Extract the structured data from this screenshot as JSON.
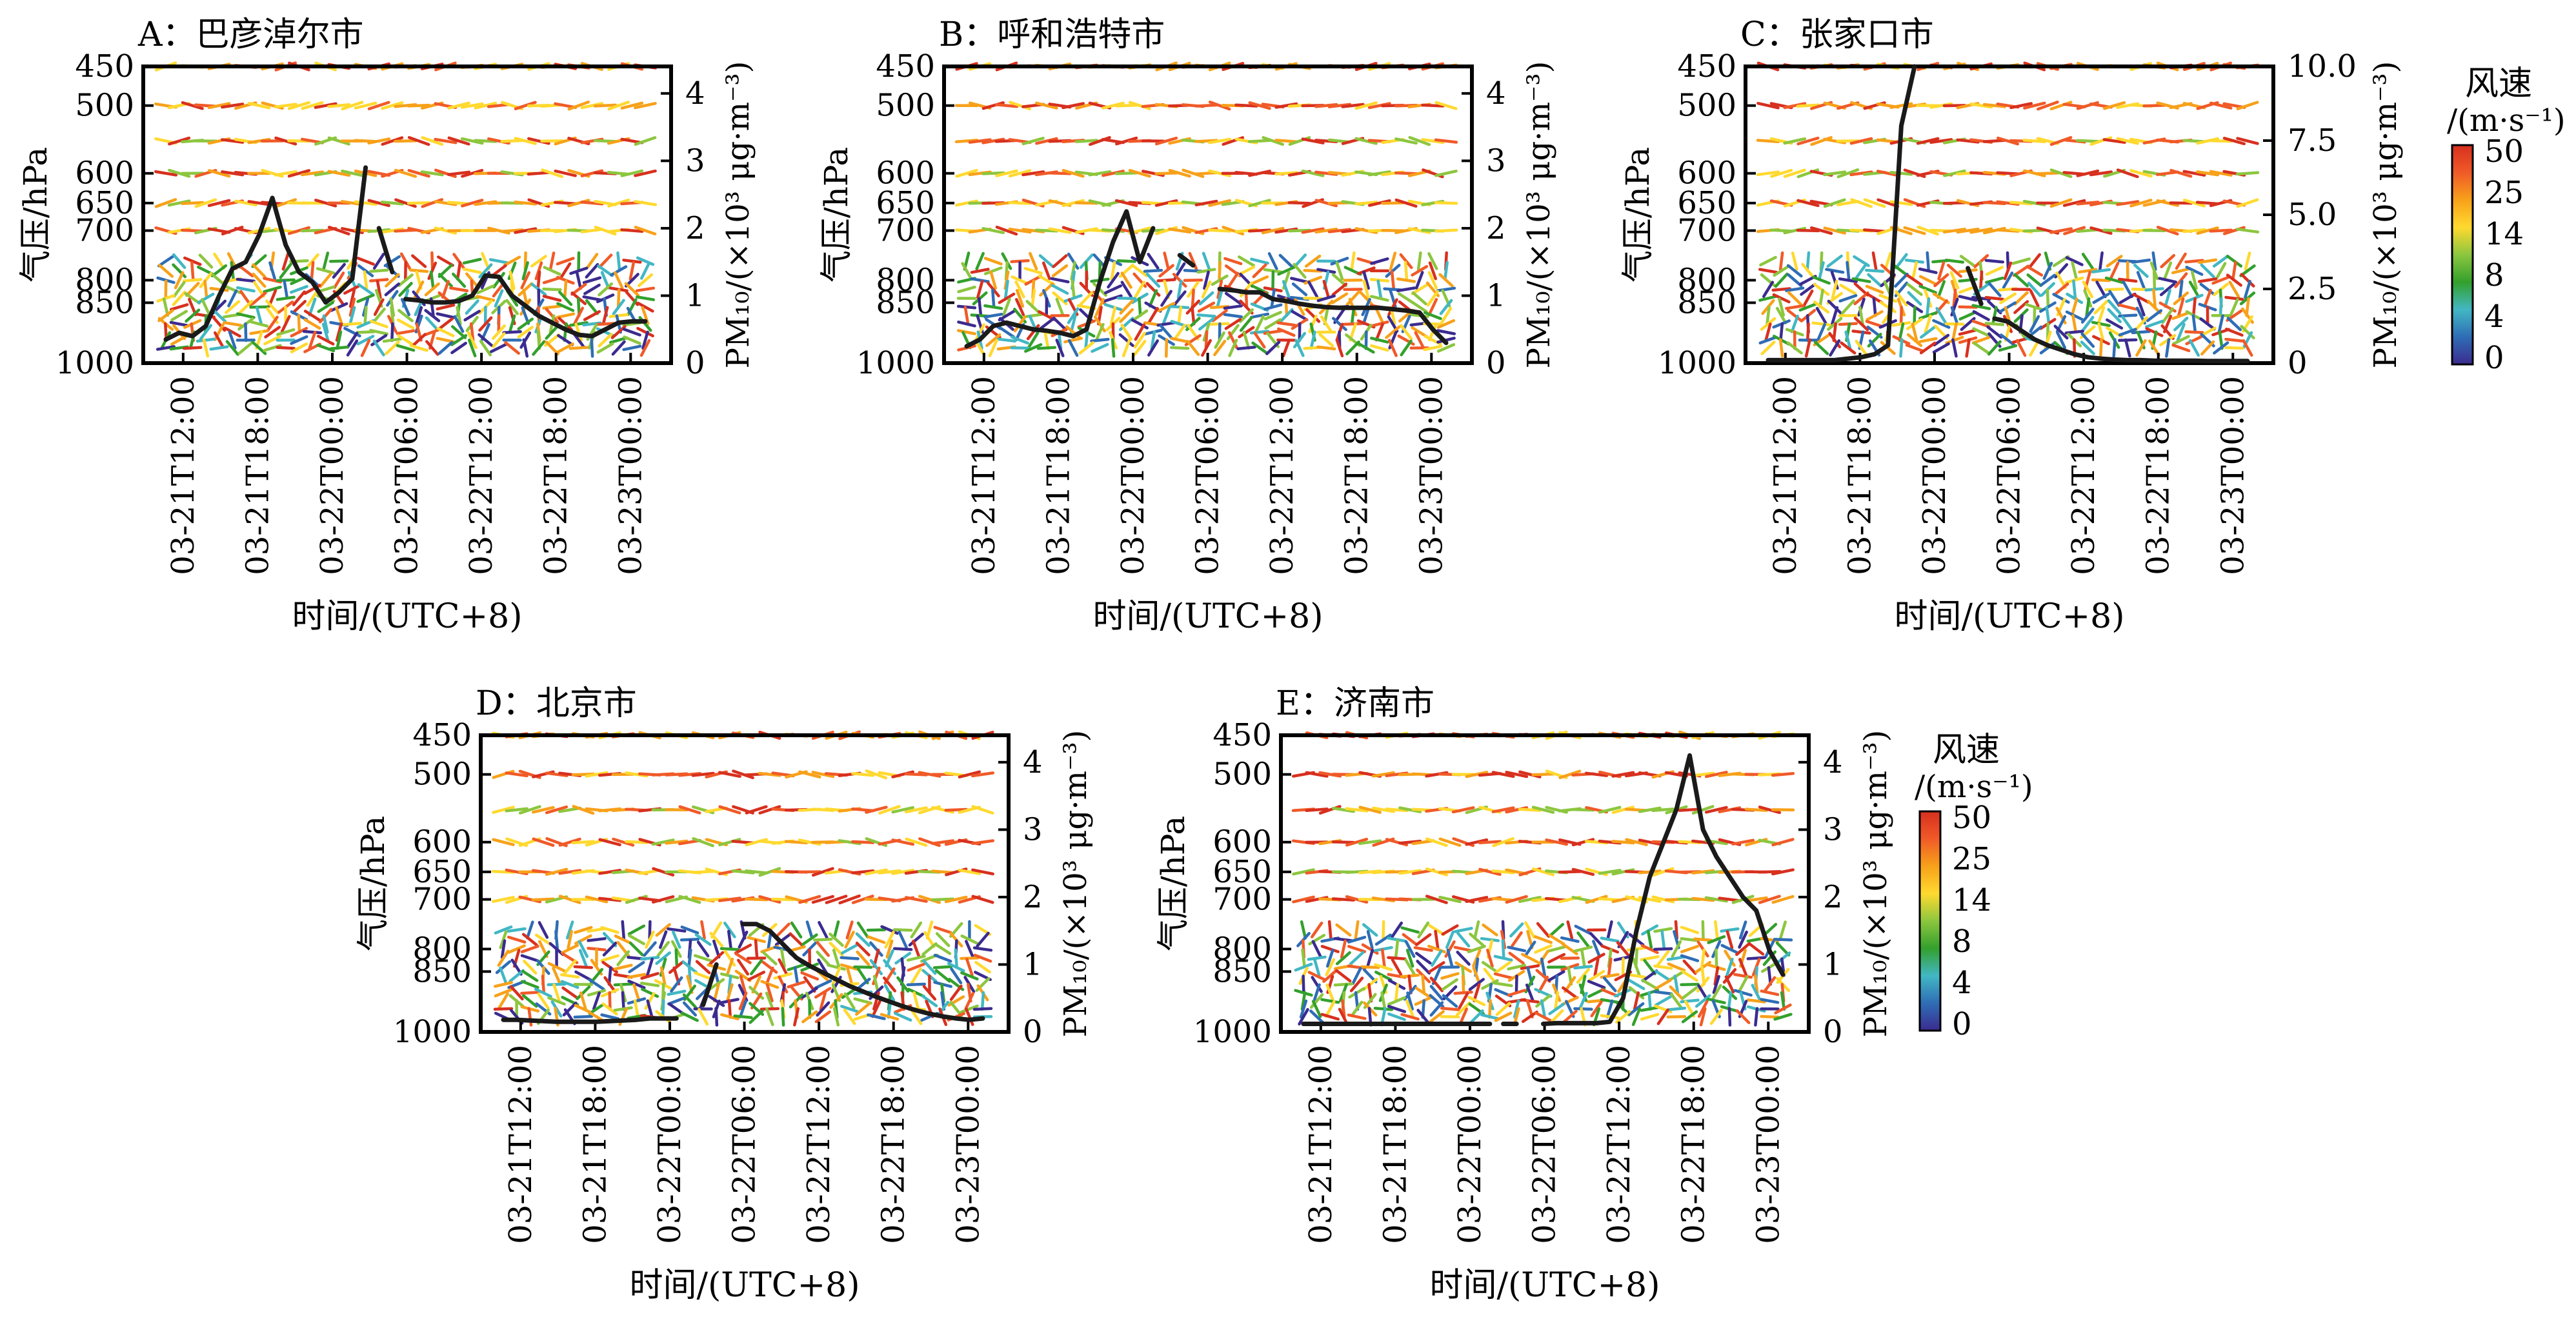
{
  "figure": {
    "common": {
      "ylabel_left": "气压/hPa",
      "ylabel_right": "PM₁₀/(×10³ μg·m⁻³)",
      "xlabel": "时间/(UTC+8)",
      "pressure_ticks": [
        450,
        500,
        600,
        650,
        700,
        800,
        850,
        1000
      ],
      "time_ticks": [
        "03-21T12:00",
        "03-21T18:00",
        "03-22T00:00",
        "03-22T06:00",
        "03-22T12:00",
        "03-22T18:00",
        "03-23T00:00"
      ]
    },
    "colorbar": {
      "title": "风速",
      "unit": "/(m·s⁻¹)",
      "ticks": [
        "50",
        "25",
        "14",
        "8",
        "4",
        "0"
      ],
      "colors": [
        "#d7301f",
        "#f05a28",
        "#f7a11a",
        "#ffd92f",
        "#8cc63f",
        "#33a02c",
        "#42b7c4",
        "#2f6db5",
        "#3b2b8f"
      ]
    }
  },
  "chart_data": [
    {
      "panel": "A",
      "title": "A：巴彦淖尔市",
      "type": "line",
      "x_range": [
        "03-21T10:00",
        "03-23T01:00"
      ],
      "ylim_right": [
        0,
        4.4
      ],
      "right_ticks": [
        0,
        1,
        2,
        3,
        4
      ],
      "wind_ylim_hpa": [
        450,
        1000
      ],
      "series": [
        {
          "segments": [
            [
              [
                0,
                0.35
              ],
              [
                1,
                0.45
              ],
              [
                2,
                0.4
              ],
              [
                3,
                0.55
              ],
              [
                4,
                1.0
              ],
              [
                5,
                1.4
              ],
              [
                6,
                1.5
              ],
              [
                7,
                1.9
              ],
              [
                8,
                2.45
              ],
              [
                9,
                1.75
              ],
              [
                10,
                1.35
              ],
              [
                11,
                1.2
              ],
              [
                12,
                0.9
              ],
              [
                13,
                1.05
              ],
              [
                14,
                1.25
              ],
              [
                15,
                2.9
              ]
            ],
            [
              [
                16,
                2.0
              ],
              [
                17,
                1.35
              ]
            ],
            [
              [
                18,
                0.95
              ],
              [
                19,
                0.93
              ],
              [
                20,
                0.9
              ],
              [
                21,
                0.9
              ],
              [
                22,
                0.92
              ],
              [
                23,
                1.0
              ],
              [
                24,
                1.3
              ],
              [
                25,
                1.28
              ],
              [
                26,
                1.0
              ],
              [
                27,
                0.85
              ],
              [
                28,
                0.7
              ],
              [
                29,
                0.6
              ],
              [
                30,
                0.5
              ],
              [
                31,
                0.42
              ],
              [
                32,
                0.4
              ],
              [
                33,
                0.5
              ],
              [
                34,
                0.6
              ],
              [
                35,
                0.62
              ],
              [
                36,
                0.62
              ]
            ]
          ]
        }
      ]
    },
    {
      "panel": "B",
      "title": "B：呼和浩特市",
      "type": "line",
      "x_range": [
        "03-21T10:00",
        "03-23T01:00"
      ],
      "ylim_right": [
        0,
        4.4
      ],
      "right_ticks": [
        0,
        1,
        2,
        3,
        4
      ],
      "wind_ylim_hpa": [
        450,
        1000
      ],
      "series": [
        {
          "segments": [
            [
              [
                0,
                0.25
              ],
              [
                1,
                0.35
              ],
              [
                2,
                0.55
              ],
              [
                3,
                0.6
              ],
              [
                4,
                0.55
              ],
              [
                5,
                0.5
              ],
              [
                6,
                0.48
              ],
              [
                7,
                0.45
              ],
              [
                8,
                0.4
              ],
              [
                9,
                0.5
              ],
              [
                10,
                1.2
              ],
              [
                11,
                1.8
              ],
              [
                12,
                2.25
              ],
              [
                13,
                1.5
              ],
              [
                14,
                2.0
              ]
            ],
            [
              [
                16,
                1.6
              ],
              [
                17,
                1.45
              ]
            ],
            [
              [
                19,
                1.1
              ],
              [
                20,
                1.08
              ],
              [
                21,
                1.05
              ],
              [
                22,
                1.05
              ],
              [
                23,
                0.95
              ],
              [
                24,
                0.92
              ],
              [
                25,
                0.88
              ],
              [
                26,
                0.85
              ],
              [
                27,
                0.83
              ],
              [
                28,
                0.82
              ],
              [
                29,
                0.82
              ],
              [
                30,
                0.82
              ],
              [
                31,
                0.82
              ],
              [
                32,
                0.8
              ],
              [
                33,
                0.78
              ],
              [
                34,
                0.75
              ],
              [
                35,
                0.5
              ],
              [
                36,
                0.3
              ]
            ]
          ]
        }
      ]
    },
    {
      "panel": "C",
      "title": "C：张家口市",
      "type": "line",
      "x_range": [
        "03-21T10:00",
        "03-23T01:00"
      ],
      "ylim_right": [
        0,
        10.0
      ],
      "right_ticks": [
        "0",
        "2.5",
        "5.0",
        "7.5",
        "10.0"
      ],
      "wind_ylim_hpa": [
        450,
        1000
      ],
      "series": [
        {
          "segments": [
            [
              [
                0,
                0.1
              ],
              [
                1,
                0.1
              ],
              [
                2,
                0.1
              ],
              [
                3,
                0.1
              ],
              [
                4,
                0.1
              ],
              [
                5,
                0.1
              ],
              [
                6,
                0.15
              ],
              [
                7,
                0.2
              ],
              [
                8,
                0.3
              ],
              [
                9,
                0.6
              ],
              [
                10,
                8.0
              ],
              [
                11,
                10.0
              ]
            ],
            [
              [
                15,
                3.2
              ],
              [
                16,
                2.0
              ]
            ],
            [
              [
                17,
                1.5
              ],
              [
                18,
                1.4
              ],
              [
                19,
                1.1
              ],
              [
                20,
                0.8
              ],
              [
                21,
                0.6
              ],
              [
                22,
                0.45
              ],
              [
                23,
                0.3
              ],
              [
                24,
                0.2
              ],
              [
                25,
                0.15
              ],
              [
                26,
                0.12
              ],
              [
                27,
                0.1
              ],
              [
                28,
                0.1
              ],
              [
                29,
                0.08
              ],
              [
                30,
                0.08
              ],
              [
                31,
                0.08
              ],
              [
                32,
                0.08
              ],
              [
                33,
                0.07
              ],
              [
                34,
                0.07
              ],
              [
                35,
                0.07
              ],
              [
                36,
                0.07
              ]
            ]
          ]
        }
      ]
    },
    {
      "panel": "D",
      "title": "D：北京市",
      "type": "line",
      "x_range": [
        "03-21T10:00",
        "03-23T01:00"
      ],
      "ylim_right": [
        0,
        4.4
      ],
      "right_ticks": [
        0,
        1,
        2,
        3,
        4
      ],
      "wind_ylim_hpa": [
        450,
        1000
      ],
      "series": [
        {
          "segments": [
            [
              [
                0,
                0.18
              ],
              [
                1,
                0.18
              ],
              [
                2,
                0.17
              ],
              [
                3,
                0.16
              ],
              [
                4,
                0.15
              ],
              [
                5,
                0.15
              ],
              [
                6,
                0.15
              ],
              [
                7,
                0.15
              ],
              [
                8,
                0.16
              ],
              [
                9,
                0.17
              ],
              [
                10,
                0.18
              ],
              [
                11,
                0.2
              ],
              [
                12,
                0.2
              ],
              [
                13,
                0.2
              ]
            ],
            [
              [
                15,
                0.4
              ],
              [
                16,
                1.0
              ]
            ],
            [
              [
                18,
                1.6
              ],
              [
                19,
                1.6
              ],
              [
                20,
                1.5
              ],
              [
                21,
                1.3
              ],
              [
                22,
                1.1
              ],
              [
                23,
                0.98
              ],
              [
                24,
                0.88
              ],
              [
                25,
                0.78
              ],
              [
                26,
                0.68
              ],
              [
                27,
                0.6
              ],
              [
                28,
                0.52
              ],
              [
                29,
                0.45
              ],
              [
                30,
                0.38
              ],
              [
                31,
                0.32
              ],
              [
                32,
                0.27
              ],
              [
                33,
                0.23
              ],
              [
                34,
                0.2
              ],
              [
                35,
                0.18
              ],
              [
                36,
                0.2
              ]
            ]
          ]
        }
      ]
    },
    {
      "panel": "E",
      "title": "E：济南市",
      "type": "line",
      "x_range": [
        "03-21T10:00",
        "03-23T01:00"
      ],
      "ylim_right": [
        0,
        4.4
      ],
      "right_ticks": [
        0,
        1,
        2,
        3,
        4
      ],
      "wind_ylim_hpa": [
        450,
        1000
      ],
      "series": [
        {
          "segments": [
            [
              [
                0,
                0.12
              ],
              [
                1,
                0.12
              ],
              [
                2,
                0.12
              ],
              [
                3,
                0.12
              ],
              [
                4,
                0.12
              ],
              [
                5,
                0.12
              ],
              [
                6,
                0.12
              ],
              [
                7,
                0.12
              ],
              [
                8,
                0.12
              ],
              [
                9,
                0.12
              ],
              [
                10,
                0.12
              ],
              [
                11,
                0.12
              ],
              [
                12,
                0.12
              ],
              [
                13,
                0.12
              ],
              [
                14,
                0.12
              ]
            ],
            [
              [
                15,
                0.12
              ],
              [
                16,
                0.12
              ]
            ],
            [
              [
                18,
                0.12
              ],
              [
                19,
                0.13
              ],
              [
                20,
                0.13
              ],
              [
                21,
                0.13
              ],
              [
                22,
                0.13
              ],
              [
                23,
                0.15
              ],
              [
                24,
                0.5
              ],
              [
                25,
                1.5
              ],
              [
                26,
                2.3
              ],
              [
                27,
                2.8
              ],
              [
                28,
                3.3
              ],
              [
                29,
                4.1
              ],
              [
                30,
                3.0
              ],
              [
                31,
                2.6
              ],
              [
                32,
                2.3
              ],
              [
                33,
                2.0
              ],
              [
                34,
                1.8
              ],
              [
                35,
                1.2
              ],
              [
                36,
                0.85
              ]
            ]
          ]
        }
      ]
    }
  ]
}
